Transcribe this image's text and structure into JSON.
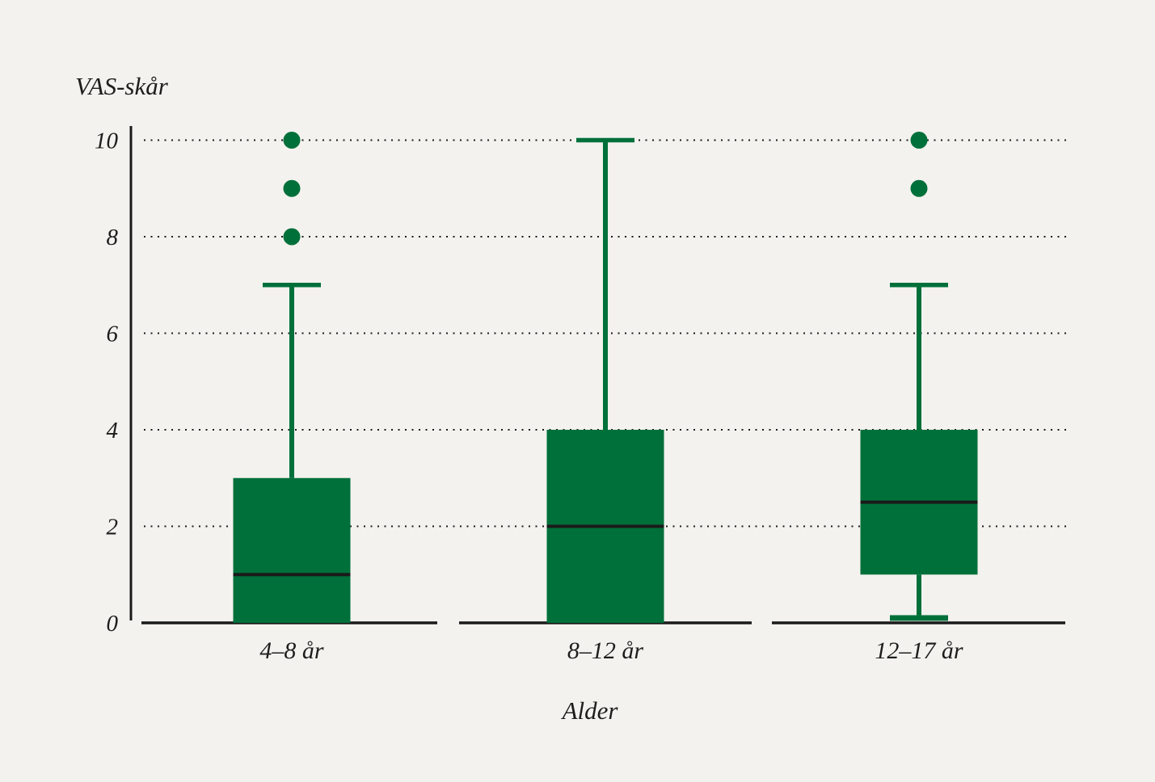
{
  "figure": {
    "background_color": "#f3f2ef"
  },
  "chart_data": {
    "type": "boxplot",
    "title": "",
    "ylabel": "VAS-skår",
    "xlabel": "Alder",
    "ylim": [
      0,
      10
    ],
    "y_ticks": [
      {
        "value": 0,
        "label": "0"
      },
      {
        "value": 2,
        "label": "2"
      },
      {
        "value": 4,
        "label": "4"
      },
      {
        "value": 6,
        "label": "6"
      },
      {
        "value": 8,
        "label": "8"
      },
      {
        "value": 10,
        "label": "10"
      }
    ],
    "gridlines": {
      "style": "dotted",
      "at_values": [
        2,
        4,
        6,
        8,
        10
      ]
    },
    "legend": "none",
    "categories": [
      "4–8 år",
      "8–12 år",
      "12–17 år"
    ],
    "series": [
      {
        "category": "4–8 år",
        "whisker_low": 0,
        "q1": 0,
        "median": 1,
        "q3": 3,
        "whisker_high": 7,
        "outliers": [
          8,
          9,
          10
        ]
      },
      {
        "category": "8–12 år",
        "whisker_low": 0,
        "q1": 0,
        "median": 2,
        "q3": 4,
        "whisker_high": 10,
        "outliers": []
      },
      {
        "category": "12–17 år",
        "whisker_low": 0,
        "q1": 1,
        "median": 2.5,
        "q3": 4,
        "whisker_high": 7,
        "outliers": [
          9,
          10
        ]
      }
    ],
    "colors": {
      "box_fill": "#00703A",
      "outlier_fill": "#00703A",
      "whisker": "#00703A",
      "median_line": "#1a1a1a",
      "axis_line": "#1a1a1a",
      "gridline": "#1a1a1a",
      "text": "#1d1d1b"
    }
  }
}
